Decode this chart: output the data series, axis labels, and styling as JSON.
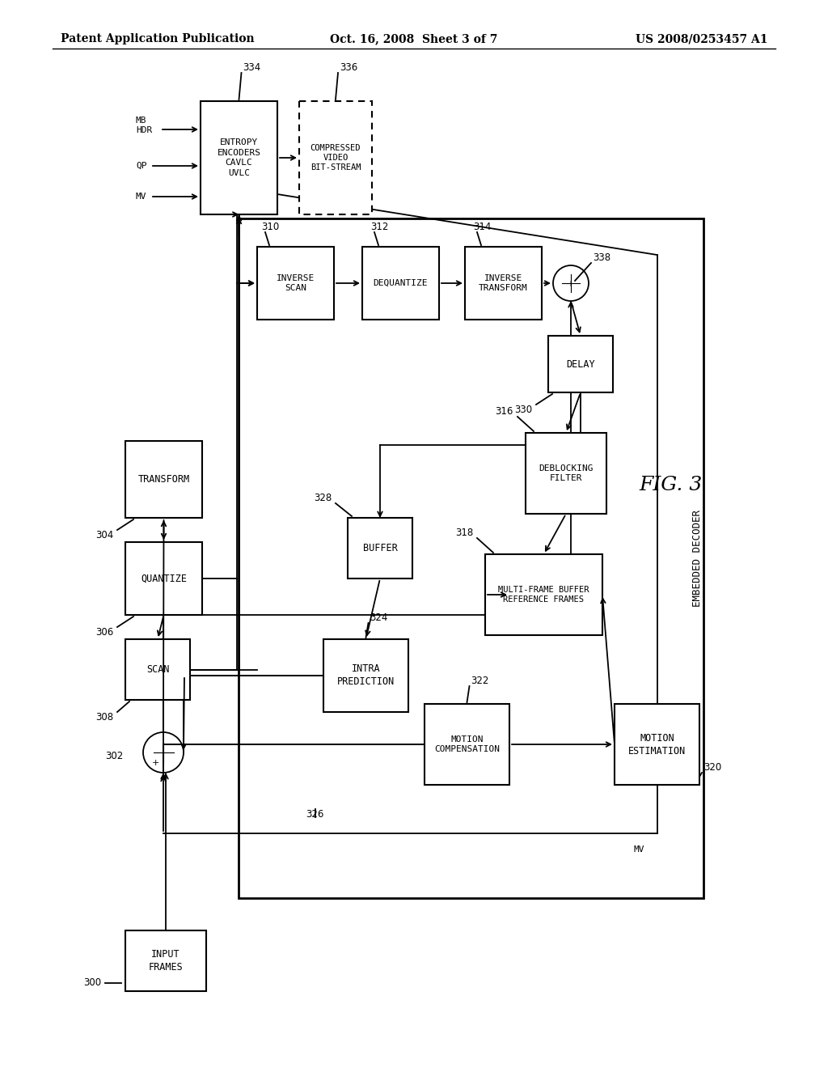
{
  "header_left": "Patent Application Publication",
  "header_center": "Oct. 16, 2008  Sheet 3 of 7",
  "header_right": "US 2008/0253457 A1",
  "fig_label": "FIG. 3",
  "background": "#ffffff"
}
